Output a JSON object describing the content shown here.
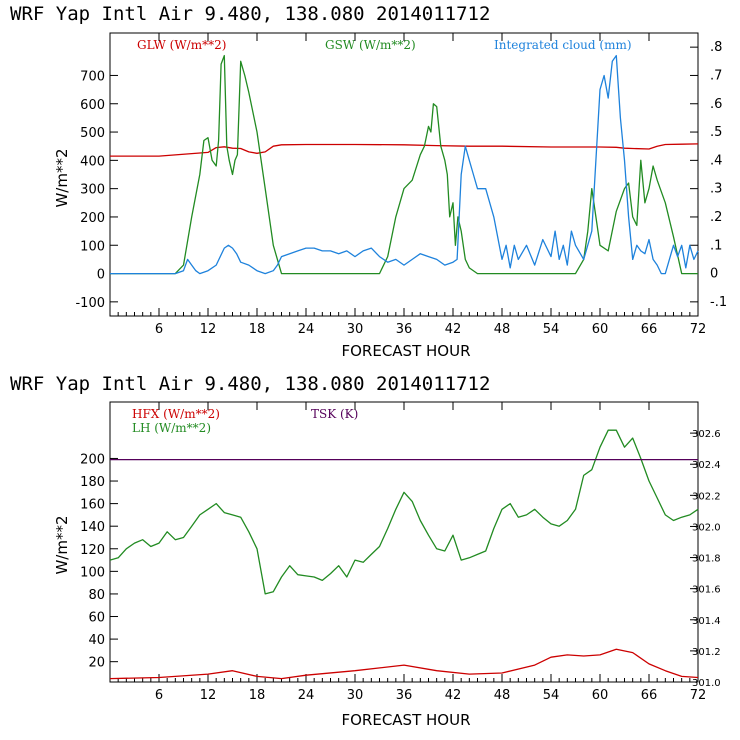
{
  "chart_data": [
    {
      "type": "line",
      "title": "WRF   Yap Intl Air   9.480, 138.080  2014011712",
      "xlabel": "FORECAST HOUR",
      "ylabel": "W/m**2",
      "xlim": [
        0,
        72
      ],
      "ylim": [
        -150,
        850
      ],
      "y2lim": [
        -0.15,
        0.85
      ],
      "x_ticks": [
        "6",
        "12",
        "18",
        "24",
        "30",
        "36",
        "42",
        "48",
        "54",
        "60",
        "66",
        "72"
      ],
      "y_ticks": [
        "-100",
        "0",
        "100",
        "200",
        "300",
        "400",
        "500",
        "600",
        "700"
      ],
      "y2_ticks": [
        "-.1",
        "0",
        ".1",
        ".2",
        ".3",
        ".4",
        ".5",
        ".6",
        ".7",
        ".8"
      ],
      "grid": false,
      "legend_position": "top",
      "series": [
        {
          "name": "GLW (W/m**2)",
          "color": "#cc0000",
          "axis": "left",
          "x": [
            0,
            6,
            12,
            13,
            14,
            15,
            16,
            17,
            18,
            19,
            20,
            21,
            24,
            30,
            36,
            40,
            44,
            48,
            54,
            60,
            62,
            63,
            64,
            66,
            67,
            68,
            70,
            72
          ],
          "y": [
            415,
            415,
            428,
            445,
            448,
            443,
            442,
            430,
            425,
            430,
            450,
            455,
            456,
            456,
            455,
            452,
            450,
            450,
            447,
            447,
            446,
            443,
            442,
            440,
            450,
            456,
            457,
            458
          ]
        },
        {
          "name": "GSW (W/m**2)",
          "color": "#228b22",
          "axis": "left",
          "x": [
            0,
            8,
            9,
            10,
            11,
            11.5,
            12,
            12.5,
            13,
            13.3,
            13.6,
            14,
            14.3,
            14.6,
            15,
            15.3,
            15.6,
            16,
            16.5,
            17,
            18,
            19,
            20,
            21,
            33,
            34,
            35,
            36,
            37,
            38,
            38.5,
            39,
            39.3,
            39.6,
            40,
            40.5,
            41,
            41.3,
            41.6,
            42,
            42.3,
            42.6,
            43,
            43.5,
            44,
            45,
            46,
            57,
            58,
            58.5,
            59,
            59.5,
            60,
            61,
            62,
            63,
            63.5,
            64,
            64.5,
            65,
            65.5,
            66,
            66.5,
            67,
            68,
            69,
            70,
            72
          ],
          "y": [
            0,
            0,
            30,
            200,
            350,
            470,
            480,
            400,
            380,
            470,
            740,
            770,
            450,
            400,
            350,
            400,
            420,
            750,
            700,
            640,
            500,
            300,
            100,
            0,
            0,
            60,
            200,
            300,
            330,
            420,
            450,
            520,
            500,
            600,
            590,
            450,
            400,
            350,
            200,
            250,
            100,
            200,
            150,
            50,
            20,
            0,
            0,
            0,
            50,
            150,
            300,
            200,
            100,
            80,
            220,
            300,
            320,
            200,
            170,
            400,
            250,
            300,
            380,
            330,
            250,
            130,
            0,
            0
          ]
        },
        {
          "name": "Integrated cloud (mm)",
          "color": "#1e82dc",
          "axis": "right",
          "x": [
            0,
            8,
            9,
            9.5,
            10,
            10.5,
            11,
            12,
            13,
            14,
            14.5,
            15,
            15.5,
            16,
            17,
            18,
            19,
            20,
            20.5,
            21,
            22,
            23,
            24,
            25,
            26,
            27,
            28,
            29,
            30,
            31,
            32,
            33,
            34,
            35,
            36,
            37,
            38,
            39,
            40,
            41,
            42,
            42.5,
            43,
            43.5,
            44,
            44.5,
            45,
            46,
            47,
            48,
            48.5,
            49,
            49.5,
            50,
            51,
            52,
            53,
            54,
            54.5,
            55,
            55.5,
            56,
            56.5,
            57,
            58,
            59,
            59.5,
            60,
            60.5,
            61,
            61.5,
            62,
            62.5,
            63,
            63.5,
            64,
            64.5,
            65,
            65.5,
            66,
            66.5,
            67,
            67.5,
            68,
            68.5,
            69,
            69.5,
            70,
            70.5,
            71,
            71.5,
            72
          ],
          "y": [
            0,
            0,
            0.01,
            0.05,
            0.03,
            0.01,
            0.0,
            0.01,
            0.03,
            0.09,
            0.1,
            0.09,
            0.07,
            0.04,
            0.03,
            0.01,
            0.0,
            0.01,
            0.03,
            0.06,
            0.07,
            0.08,
            0.09,
            0.09,
            0.08,
            0.08,
            0.07,
            0.08,
            0.06,
            0.08,
            0.09,
            0.06,
            0.04,
            0.05,
            0.03,
            0.05,
            0.07,
            0.06,
            0.05,
            0.03,
            0.04,
            0.05,
            0.35,
            0.45,
            0.4,
            0.35,
            0.3,
            0.3,
            0.2,
            0.05,
            0.1,
            0.02,
            0.1,
            0.05,
            0.1,
            0.03,
            0.12,
            0.06,
            0.15,
            0.05,
            0.1,
            0.03,
            0.15,
            0.1,
            0.05,
            0.15,
            0.4,
            0.65,
            0.7,
            0.62,
            0.75,
            0.77,
            0.55,
            0.4,
            0.2,
            0.05,
            0.1,
            0.08,
            0.07,
            0.12,
            0.05,
            0.03,
            0.0,
            0.0,
            0.05,
            0.1,
            0.06,
            0.1,
            0.02,
            0.1,
            0.05,
            0.08
          ]
        }
      ]
    },
    {
      "type": "line",
      "title": "WRF   Yap Intl Air   9.480, 138.080  2014011712",
      "xlabel": "FORECAST HOUR",
      "ylabel": "W/m**2",
      "xlim": [
        0,
        72
      ],
      "ylim": [
        2,
        250
      ],
      "y2lim": [
        301.0,
        302.8
      ],
      "x_ticks": [
        "6",
        "12",
        "18",
        "24",
        "30",
        "36",
        "42",
        "48",
        "54",
        "60",
        "66",
        "72"
      ],
      "y_ticks": [
        "20",
        "40",
        "60",
        "80",
        "100",
        "120",
        "140",
        "160",
        "180",
        "200"
      ],
      "y2_ticks": [
        "301.0",
        "301.2",
        "301.4",
        "301.6",
        "301.8",
        "302.0",
        "302.2",
        "302.4",
        "302.6"
      ],
      "grid": false,
      "legend_position": "top-left",
      "series": [
        {
          "name": "HFX (W/m**2)",
          "color": "#cc0000",
          "axis": "left",
          "x": [
            0,
            6,
            12,
            15,
            18,
            21,
            24,
            30,
            36,
            40,
            44,
            48,
            52,
            54,
            56,
            58,
            60,
            62,
            64,
            66,
            68,
            70,
            72
          ],
          "y": [
            5,
            6,
            9,
            12,
            7,
            5,
            8,
            12,
            17,
            12,
            9,
            10,
            17,
            24,
            26,
            25,
            26,
            31,
            28,
            18,
            12,
            7,
            6
          ]
        },
        {
          "name": "LH  (W/m**2)",
          "color": "#228b22",
          "axis": "left",
          "x": [
            0,
            1,
            2,
            3,
            4,
            5,
            6,
            7,
            8,
            9,
            10,
            11,
            12,
            13,
            14,
            15,
            16,
            17,
            18,
            19,
            20,
            21,
            22,
            23,
            24,
            25,
            26,
            27,
            28,
            29,
            30,
            31,
            32,
            33,
            34,
            35,
            36,
            37,
            38,
            39,
            40,
            41,
            42,
            43,
            44,
            45,
            46,
            47,
            48,
            49,
            50,
            51,
            52,
            53,
            54,
            55,
            56,
            57,
            58,
            59,
            60,
            61,
            62,
            63,
            64,
            65,
            66,
            67,
            68,
            69,
            70,
            71,
            72
          ],
          "y": [
            110,
            112,
            120,
            125,
            128,
            122,
            125,
            135,
            128,
            130,
            140,
            150,
            155,
            160,
            152,
            150,
            148,
            135,
            120,
            80,
            82,
            95,
            105,
            97,
            96,
            95,
            92,
            98,
            105,
            95,
            110,
            108,
            115,
            122,
            138,
            155,
            170,
            162,
            145,
            132,
            120,
            118,
            132,
            110,
            112,
            115,
            118,
            138,
            155,
            160,
            148,
            150,
            155,
            148,
            142,
            140,
            145,
            155,
            185,
            190,
            210,
            225,
            225,
            210,
            218,
            200,
            180,
            165,
            150,
            145,
            148,
            150,
            155
          ]
        },
        {
          "name": "TSK (K)",
          "color": "#55005a",
          "axis": "right",
          "x": [
            0,
            72
          ],
          "y": [
            302.43,
            302.43
          ]
        }
      ]
    }
  ]
}
